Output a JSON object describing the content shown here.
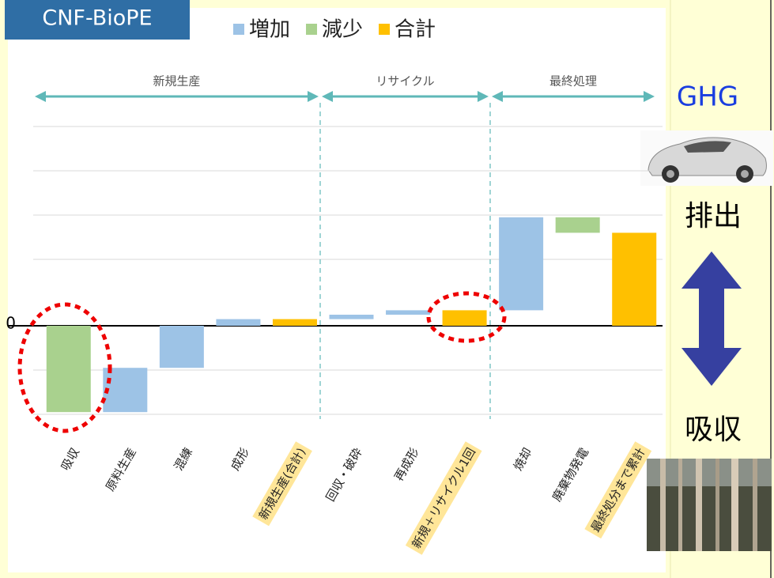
{
  "badge": "CNF-BioPE",
  "side": {
    "ghg": "GHG",
    "emit": "排出",
    "absorb": "吸収"
  },
  "chart_data": {
    "type": "waterfall",
    "legend": [
      {
        "name": "増加",
        "color": "#9dc3e6"
      },
      {
        "name": "減少",
        "color": "#a9d18e"
      },
      {
        "name": "合計",
        "color": "#ffc000"
      }
    ],
    "sections": [
      "新規生産",
      "リサイクル",
      "最終処理"
    ],
    "categories": [
      "吸収",
      "原料生産",
      "混練",
      "成形",
      "新規生産(合計)",
      "回収・破砕",
      "再成形",
      "新規＋リサイクル1回",
      "焼却",
      "廃棄物発電",
      "最終処分まで累計"
    ],
    "values": [
      -1.95,
      1.0,
      0.95,
      0.15,
      0.15,
      0.1,
      0.1,
      0.35,
      2.1,
      -0.35,
      2.1
    ],
    "kinds": [
      1,
      0,
      0,
      0,
      2,
      0,
      0,
      2,
      0,
      1,
      2
    ],
    "ylim": [
      -2.3,
      5.6
    ],
    "yticks": [
      {
        "value": -2,
        "label": null
      },
      {
        "value": -1,
        "label": null
      },
      0,
      {
        "value": 1.5,
        "label": null
      },
      {
        "value": 2.5,
        "label": null
      },
      {
        "value": 3.5,
        "label": null
      },
      {
        "value": 4.5,
        "label": null
      }
    ],
    "grid": true
  }
}
